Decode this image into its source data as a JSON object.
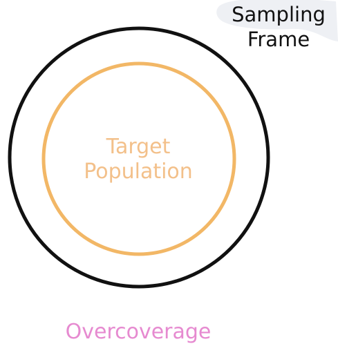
{
  "diagram": {
    "outer_circle_label": [
      "Sampling",
      "Frame"
    ],
    "inner_circle_label": [
      "Target",
      "Population"
    ],
    "region_label": "Overcoverage"
  },
  "colors": {
    "outer_circle": "#111111",
    "inner_circle": "#f2b766",
    "inner_label": "#f3c08a",
    "region_label": "#e68ad0",
    "blob": "#eef0f4"
  }
}
